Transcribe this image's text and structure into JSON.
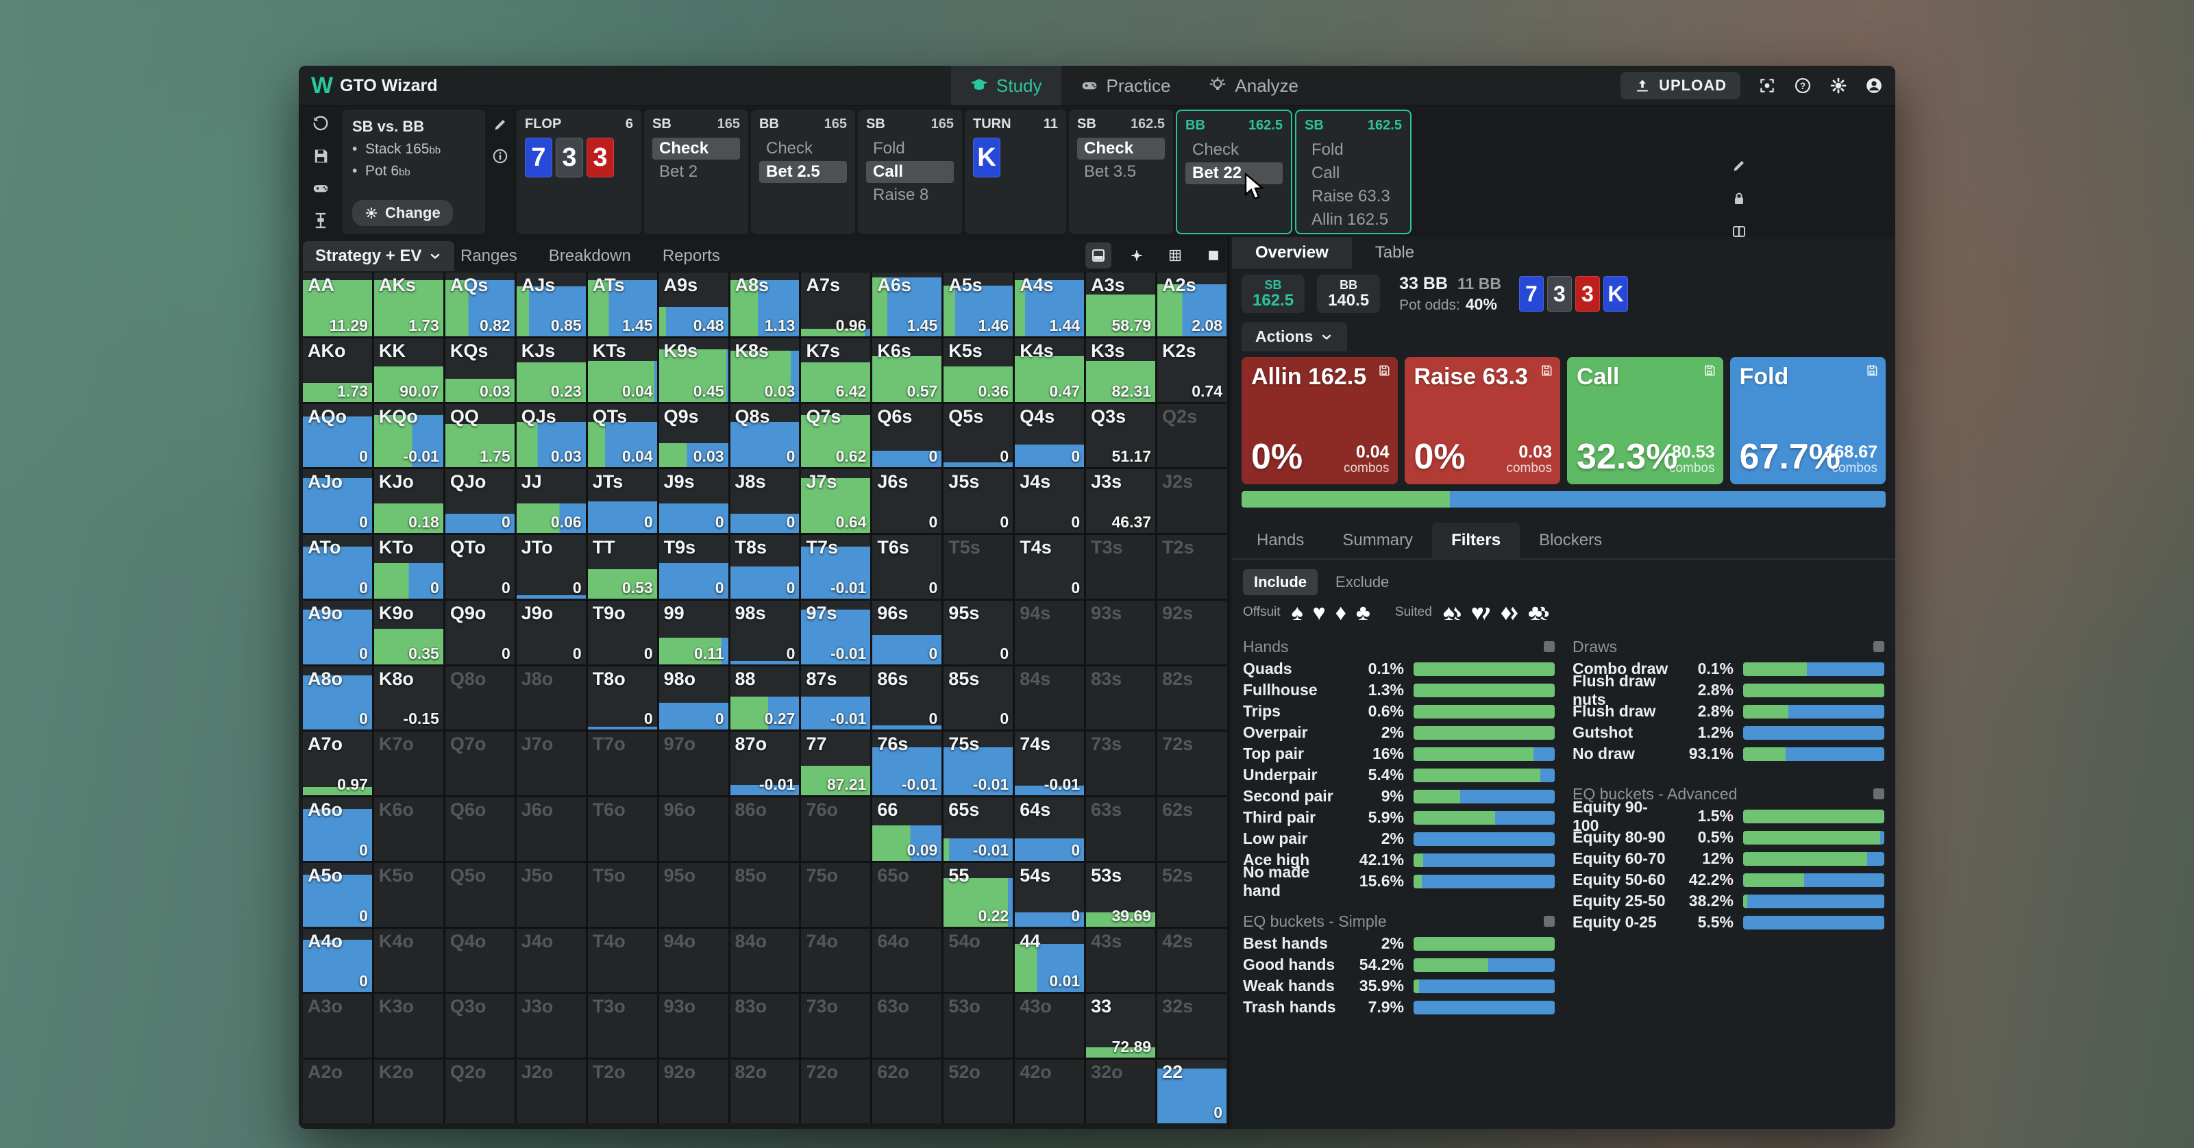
{
  "app": {
    "brand": "GTO Wizard"
  },
  "header": {
    "nav": [
      {
        "label": "Study",
        "icon": "graduation-cap",
        "active": true
      },
      {
        "label": "Practice",
        "icon": "gamepad",
        "active": false
      },
      {
        "label": "Analyze",
        "icon": "lightbulb",
        "active": false
      }
    ],
    "upload_label": "UPLOAD",
    "right_icons": [
      "scan-icon",
      "help-icon",
      "settings-icon",
      "account-icon"
    ]
  },
  "left_toolbar_icons": [
    "reset-icon",
    "save-icon",
    "gamepad-icon",
    "range-slider-icon"
  ],
  "game_info": {
    "title": "SB vs. BB",
    "stack_label": "Stack",
    "stack_value": "165",
    "stack_unit": "bb",
    "pot_label": "Pot",
    "pot_value": "6",
    "pot_unit": "bb",
    "change_label": "Change",
    "side_icons": [
      "edit-icon",
      "info-icon"
    ]
  },
  "history": [
    {
      "kind": "street",
      "label": "FLOP",
      "count": "6",
      "cards": [
        {
          "rank": "7",
          "suit": "diamond"
        },
        {
          "rank": "3",
          "suit": "spade"
        },
        {
          "rank": "3",
          "suit": "heart"
        }
      ]
    },
    {
      "kind": "actions",
      "player": "SB",
      "stack": "165",
      "highlight": false,
      "items": [
        {
          "label": "Check",
          "chosen": true
        },
        {
          "label": "Bet 2",
          "chosen": false
        }
      ]
    },
    {
      "kind": "actions",
      "player": "BB",
      "stack": "165",
      "highlight": false,
      "items": [
        {
          "label": "Check",
          "chosen": false
        },
        {
          "label": "Bet 2.5",
          "chosen": true
        }
      ]
    },
    {
      "kind": "actions",
      "player": "SB",
      "stack": "165",
      "highlight": false,
      "items": [
        {
          "label": "Fold",
          "chosen": false
        },
        {
          "label": "Call",
          "chosen": true
        },
        {
          "label": "Raise 8",
          "chosen": false
        }
      ]
    },
    {
      "kind": "street",
      "label": "TURN",
      "count": "11",
      "cards": [
        {
          "rank": "K",
          "suit": "diamond"
        }
      ]
    },
    {
      "kind": "actions",
      "player": "SB",
      "stack": "162.5",
      "highlight": false,
      "items": [
        {
          "label": "Check",
          "chosen": true
        },
        {
          "label": "Bet 3.5",
          "chosen": false
        }
      ]
    },
    {
      "kind": "actions",
      "player": "BB",
      "stack": "162.5",
      "highlight": true,
      "items": [
        {
          "label": "Check",
          "chosen": false
        },
        {
          "label": "Bet 22",
          "chosen": true
        }
      ]
    },
    {
      "kind": "actions",
      "player": "SB",
      "stack": "162.5",
      "highlight": true,
      "items": [
        {
          "label": "Fold",
          "chosen": false
        },
        {
          "label": "Call",
          "chosen": false
        },
        {
          "label": "Raise 63.3",
          "chosen": false
        },
        {
          "label": "Allin 162.5",
          "chosen": false
        }
      ]
    }
  ],
  "history_tool_icons": [
    "edit-icon",
    "lock-icon",
    "compare-icon"
  ],
  "matrix": {
    "dropdown_label": "Strategy + EV",
    "tabs": [
      "Ranges",
      "Breakdown",
      "Reports"
    ],
    "view_icons": [
      "card-view-icon",
      "dot-view-icon",
      "grid-view-icon",
      "square-view-icon"
    ],
    "colors": {
      "call_green": "#6ec473",
      "fold_blue": "#4a93d4"
    },
    "rows": [
      [
        [
          "AA",
          "11.29",
          88,
          100
        ],
        [
          "AKs",
          "1.73",
          88,
          100
        ],
        [
          "AQs",
          "0.82",
          88,
          33
        ],
        [
          "AJs",
          "0.85",
          78,
          18
        ],
        [
          "ATs",
          "1.45",
          88,
          30
        ],
        [
          "A9s",
          "0.48",
          46,
          10
        ],
        [
          "A8s",
          "1.13",
          88,
          40
        ],
        [
          "A7s",
          "0.96",
          12,
          92
        ],
        [
          "A6s",
          "1.45",
          92,
          22
        ],
        [
          "A5s",
          "1.46",
          80,
          17
        ],
        [
          "A4s",
          "1.44",
          88,
          15
        ],
        [
          "A3s",
          "58.79",
          66,
          100
        ],
        [
          "A2s",
          "2.08",
          82,
          36
        ]
      ],
      [
        [
          "AKo",
          "1.73",
          30,
          100
        ],
        [
          "KK",
          "90.07",
          56,
          100
        ],
        [
          "KQs",
          "0.03",
          36,
          100
        ],
        [
          "KJs",
          "0.23",
          62,
          100
        ],
        [
          "KTs",
          "0.04",
          64,
          96
        ],
        [
          "K9s",
          "0.45",
          82,
          97
        ],
        [
          "K8s",
          "0.03",
          80,
          88
        ],
        [
          "K7s",
          "6.42",
          62,
          100
        ],
        [
          "K6s",
          "0.57",
          72,
          100
        ],
        [
          "K5s",
          "0.36",
          56,
          100
        ],
        [
          "K4s",
          "0.47",
          72,
          100
        ],
        [
          "K3s",
          "82.31",
          64,
          100
        ],
        [
          "K2s",
          "0.74",
          0,
          0
        ]
      ],
      [
        [
          "AQo",
          "0",
          80,
          0
        ],
        [
          "KQo",
          "-0.01",
          82,
          55
        ],
        [
          "QQ",
          "1.75",
          68,
          100
        ],
        [
          "QJs",
          "0.03",
          72,
          30
        ],
        [
          "QTs",
          "0.04",
          72,
          25
        ],
        [
          "Q9s",
          "0.03",
          38,
          40
        ],
        [
          "Q8s",
          "0",
          72,
          0
        ],
        [
          "Q7s",
          "0.62",
          82,
          100
        ],
        [
          "Q6s",
          "0",
          26,
          0
        ],
        [
          "Q5s",
          "0",
          8,
          0
        ],
        [
          "Q4s",
          "0",
          36,
          0
        ],
        [
          "Q3s",
          "51.17",
          0,
          0
        ],
        [
          "Q2s"
        ]
      ],
      [
        [
          "AJo",
          "0",
          86,
          0
        ],
        [
          "KJo",
          "0.18",
          46,
          100
        ],
        [
          "QJo",
          "0",
          30,
          0
        ],
        [
          "JJ",
          "0.06",
          46,
          62
        ],
        [
          "JTs",
          "0",
          50,
          0
        ],
        [
          "J9s",
          "0",
          46,
          0
        ],
        [
          "J8s",
          "0",
          30,
          0
        ],
        [
          "J7s",
          "0.64",
          86,
          100
        ],
        [
          "J6s",
          "0",
          0,
          0
        ],
        [
          "J5s",
          "0",
          0,
          0
        ],
        [
          "J4s",
          "0",
          0,
          0
        ],
        [
          "J3s",
          "46.37",
          0,
          0
        ],
        [
          "J2s"
        ]
      ],
      [
        [
          "ATo",
          "0",
          82,
          0
        ],
        [
          "KTo",
          "0",
          56,
          50
        ],
        [
          "QTo",
          "0",
          0,
          0
        ],
        [
          "JTo",
          "0",
          5,
          0
        ],
        [
          "TT",
          "0.53",
          46,
          100
        ],
        [
          "T9s",
          "0",
          56,
          0
        ],
        [
          "T8s",
          "0",
          50,
          0
        ],
        [
          "T7s",
          "-0.01",
          82,
          0
        ],
        [
          "T6s",
          "0",
          0,
          0
        ],
        [
          "T5s"
        ],
        [
          "T4s",
          "0",
          0,
          0
        ],
        [
          "T3s"
        ],
        [
          "T2s"
        ]
      ],
      [
        [
          "A9o",
          "0",
          86,
          0
        ],
        [
          "K9o",
          "0.35",
          56,
          100
        ],
        [
          "Q9o",
          "0",
          0,
          0
        ],
        [
          "J9o",
          "0",
          0,
          0
        ],
        [
          "T9o",
          "0",
          0,
          0
        ],
        [
          "99",
          "0.11",
          42,
          90
        ],
        [
          "98s",
          "0",
          5,
          0
        ],
        [
          "97s",
          "-0.01",
          86,
          0
        ],
        [
          "96s",
          "0",
          46,
          0
        ],
        [
          "95s",
          "0",
          0,
          0
        ],
        [
          "94s"
        ],
        [
          "93s"
        ],
        [
          "92s"
        ]
      ],
      [
        [
          "A8o",
          "0",
          86,
          0
        ],
        [
          "K8o",
          "-0.15",
          0,
          0
        ],
        [
          "Q8o"
        ],
        [
          "J8o"
        ],
        [
          "T8o",
          "0",
          5,
          0
        ],
        [
          "98o",
          "0",
          42,
          0
        ],
        [
          "88",
          "0.27",
          52,
          55
        ],
        [
          "87s",
          "-0.01",
          52,
          0
        ],
        [
          "86s",
          "0",
          7,
          0
        ],
        [
          "85s",
          "0",
          0,
          0
        ],
        [
          "84s"
        ],
        [
          "83s"
        ],
        [
          "82s"
        ]
      ],
      [
        [
          "A7o",
          "0.97",
          13,
          100
        ],
        [
          "K7o"
        ],
        [
          "Q7o"
        ],
        [
          "J7o"
        ],
        [
          "T7o"
        ],
        [
          "97o"
        ],
        [
          "87o",
          "-0.01",
          16,
          0
        ],
        [
          "77",
          "87.21",
          46,
          100
        ],
        [
          "76s",
          "-0.01",
          76,
          0
        ],
        [
          "75s",
          "-0.01",
          76,
          0
        ],
        [
          "74s",
          "-0.01",
          15,
          0
        ],
        [
          "73s"
        ],
        [
          "72s"
        ]
      ],
      [
        [
          "A6o",
          "0",
          82,
          0
        ],
        [
          "K6o"
        ],
        [
          "Q6o"
        ],
        [
          "J6o"
        ],
        [
          "T6o"
        ],
        [
          "96o"
        ],
        [
          "86o"
        ],
        [
          "76o"
        ],
        [
          "66",
          "0.09",
          56,
          55
        ],
        [
          "65s",
          "-0.01",
          36,
          8
        ],
        [
          "64s",
          "0",
          36,
          0
        ],
        [
          "63s"
        ],
        [
          "62s"
        ]
      ],
      [
        [
          "A5o",
          "0",
          82,
          0
        ],
        [
          "K5o"
        ],
        [
          "Q5o"
        ],
        [
          "J5o"
        ],
        [
          "T5o"
        ],
        [
          "95o"
        ],
        [
          "85o"
        ],
        [
          "75o"
        ],
        [
          "65o"
        ],
        [
          "55",
          "0.22",
          76,
          93
        ],
        [
          "54s",
          "0",
          22,
          0
        ],
        [
          "53s",
          "39.69",
          22,
          100
        ],
        [
          "52s"
        ]
      ],
      [
        [
          "A4o",
          "0",
          82,
          0
        ],
        [
          "K4o"
        ],
        [
          "Q4o"
        ],
        [
          "J4o"
        ],
        [
          "T4o"
        ],
        [
          "94o"
        ],
        [
          "84o"
        ],
        [
          "74o"
        ],
        [
          "64o"
        ],
        [
          "54o"
        ],
        [
          "44",
          "0.01",
          76,
          32
        ],
        [
          "43s"
        ],
        [
          "42s"
        ]
      ],
      [
        [
          "A3o"
        ],
        [
          "K3o"
        ],
        [
          "Q3o"
        ],
        [
          "J3o"
        ],
        [
          "T3o"
        ],
        [
          "93o"
        ],
        [
          "83o"
        ],
        [
          "73o"
        ],
        [
          "63o"
        ],
        [
          "53o"
        ],
        [
          "43o"
        ],
        [
          "33",
          "72.89",
          16,
          100
        ],
        [
          "32s"
        ]
      ],
      [
        [
          "A2o"
        ],
        [
          "K2o"
        ],
        [
          "Q2o"
        ],
        [
          "J2o"
        ],
        [
          "T2o"
        ],
        [
          "92o"
        ],
        [
          "82o"
        ],
        [
          "72o"
        ],
        [
          "62o"
        ],
        [
          "52o"
        ],
        [
          "42o"
        ],
        [
          "32o"
        ],
        [
          "22",
          "0",
          86,
          0
        ]
      ]
    ]
  },
  "panel": {
    "tabs": [
      {
        "label": "Overview",
        "active": true
      },
      {
        "label": "Table",
        "active": false
      }
    ],
    "players": [
      {
        "pos": "SB",
        "stack": "162.5",
        "accent": true
      },
      {
        "pos": "BB",
        "stack": "140.5",
        "accent": false
      }
    ],
    "pot": {
      "bet": "33 BB",
      "call": "11 BB",
      "odds_label": "Pot odds:",
      "odds": "40%"
    },
    "board": [
      {
        "rank": "7",
        "suit": "diamond"
      },
      {
        "rank": "3",
        "suit": "spade"
      },
      {
        "rank": "3",
        "suit": "heart"
      },
      {
        "rank": "K",
        "suit": "diamond"
      }
    ],
    "actions_label": "Actions",
    "combos_label": "combos",
    "actions": [
      {
        "name": "Allin 162.5",
        "pct": "0%",
        "combos": "0.04",
        "color": "#8c2a26"
      },
      {
        "name": "Raise 63.3",
        "pct": "0%",
        "combos": "0.03",
        "color": "#b23b36"
      },
      {
        "name": "Call",
        "pct": "32.3%",
        "combos": "80.53",
        "color": "#5eba64"
      },
      {
        "name": "Fold",
        "pct": "67.7%",
        "combos": "168.67",
        "color": "#4590d5"
      }
    ],
    "strategy_bar": {
      "green_pct": 32.3,
      "blue_pct": 67.7
    },
    "filter_tabs": [
      {
        "label": "Hands",
        "active": false
      },
      {
        "label": "Summary",
        "active": false
      },
      {
        "label": "Filters",
        "active": true
      },
      {
        "label": "Blockers",
        "active": false
      }
    ],
    "include_toggle": [
      {
        "label": "Include",
        "active": true
      },
      {
        "label": "Exclude",
        "active": false
      }
    ],
    "suit_filters": {
      "offsuit_label": "Offsuit",
      "suited_label": "Suited",
      "suits": [
        "spade",
        "heart",
        "diamond",
        "club"
      ]
    },
    "sections": {
      "hands": {
        "title": "Hands",
        "rows": [
          [
            "Quads",
            "0.1%",
            100
          ],
          [
            "Fullhouse",
            "1.3%",
            100
          ],
          [
            "Trips",
            "0.6%",
            100
          ],
          [
            "Overpair",
            "2%",
            100
          ],
          [
            "Top pair",
            "16%",
            85
          ],
          [
            "Underpair",
            "5.4%",
            90
          ],
          [
            "Second pair",
            "9%",
            33
          ],
          [
            "Third pair",
            "5.9%",
            58
          ],
          [
            "Low pair",
            "2%",
            0
          ],
          [
            "Ace high",
            "42.1%",
            7
          ],
          [
            "No made hand",
            "15.6%",
            6
          ]
        ]
      },
      "eq_simple": {
        "title": "EQ buckets - Simple",
        "rows": [
          [
            "Best hands",
            "2%",
            100
          ],
          [
            "Good hands",
            "54.2%",
            53
          ],
          [
            "Weak hands",
            "35.9%",
            4
          ],
          [
            "Trash hands",
            "7.9%",
            0
          ]
        ]
      },
      "draws": {
        "title": "Draws",
        "rows": [
          [
            "Combo draw",
            "0.1%",
            45
          ],
          [
            "Flush draw nuts",
            "2.8%",
            100
          ],
          [
            "Flush draw",
            "2.8%",
            32
          ],
          [
            "Gutshot",
            "1.2%",
            0
          ],
          [
            "No draw",
            "93.1%",
            30
          ]
        ]
      },
      "eq_advanced": {
        "title": "EQ buckets - Advanced",
        "rows": [
          [
            "Equity 90-100",
            "1.5%",
            100
          ],
          [
            "Equity 80-90",
            "0.5%",
            97
          ],
          [
            "Equity 60-70",
            "12%",
            88
          ],
          [
            "Equity 50-60",
            "42.2%",
            43
          ],
          [
            "Equity 25-50",
            "38.2%",
            3
          ],
          [
            "Equity 0-25",
            "5.5%",
            0
          ]
        ]
      }
    }
  }
}
